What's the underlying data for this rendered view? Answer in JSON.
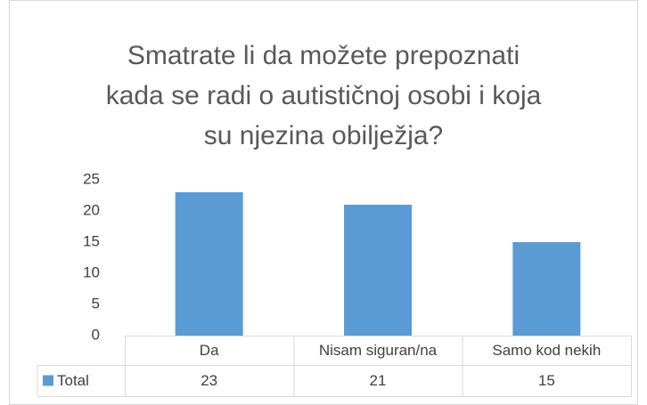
{
  "chart_data": {
    "type": "bar",
    "title": "Smatrate li da možete prepoznati\nkada se radi o autističnoj osobi i koja\nsu njezina obilježja?",
    "categories": [
      "Da",
      "Nisam siguran/na",
      "Samo kod nekih"
    ],
    "series": [
      {
        "name": "Total",
        "color": "#5b9bd5",
        "values": [
          23,
          21,
          15
        ]
      }
    ],
    "ylim": [
      0,
      25
    ],
    "yticks": [
      0,
      5,
      10,
      15,
      20,
      25
    ],
    "grid": false
  }
}
